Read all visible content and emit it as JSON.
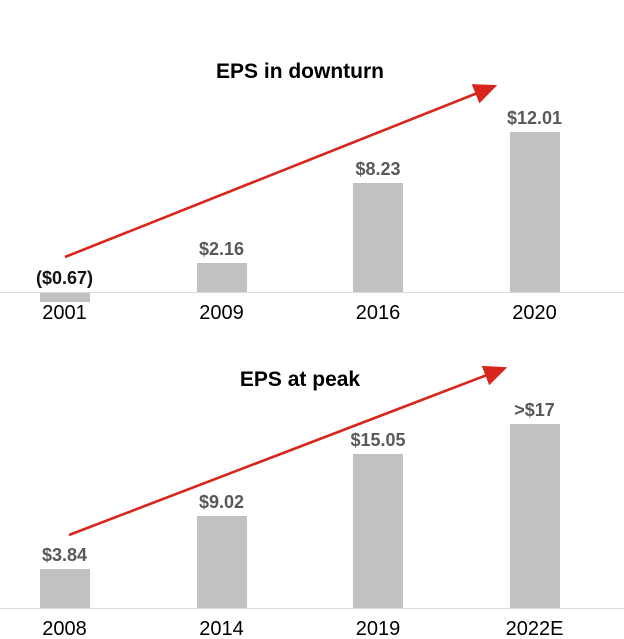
{
  "colors": {
    "background": "#ffffff",
    "bar_fill": "#c1c1c1",
    "data_label": "#595959",
    "negative_data_label": "#121212",
    "category_label": "#000000",
    "title": "#000000",
    "arrow": "#d9261c",
    "axis_line": "#d9d9d9"
  },
  "chart_data": [
    {
      "type": "bar",
      "title": "EPS in downturn",
      "categories": [
        "2001",
        "2009",
        "2016",
        "2020"
      ],
      "values": [
        -0.67,
        2.16,
        8.23,
        12.01
      ],
      "data_labels": [
        "($0.67)",
        "$2.16",
        "$8.23",
        "$12.01"
      ],
      "xlabel": "",
      "ylabel": "",
      "ylim": [
        -1,
        13
      ],
      "grid": false,
      "legend": "none",
      "bar_color": "#c1c1c1",
      "annotations": [
        "red upward trend arrow from 2001 bar to above 2020 bar"
      ]
    },
    {
      "type": "bar",
      "title": "EPS at peak",
      "categories": [
        "2008",
        "2014",
        "2019",
        "2022E"
      ],
      "values": [
        3.84,
        9.02,
        15.05,
        18
      ],
      "data_labels": [
        "$3.84",
        "$9.02",
        "$15.05",
        ">$17"
      ],
      "xlabel": "",
      "ylabel": "",
      "ylim": [
        0,
        19
      ],
      "grid": false,
      "legend": "none",
      "bar_color": "#c1c1c1",
      "annotations": [
        "red upward trend arrow from 2008 bar to above 2022E bar"
      ]
    }
  ]
}
